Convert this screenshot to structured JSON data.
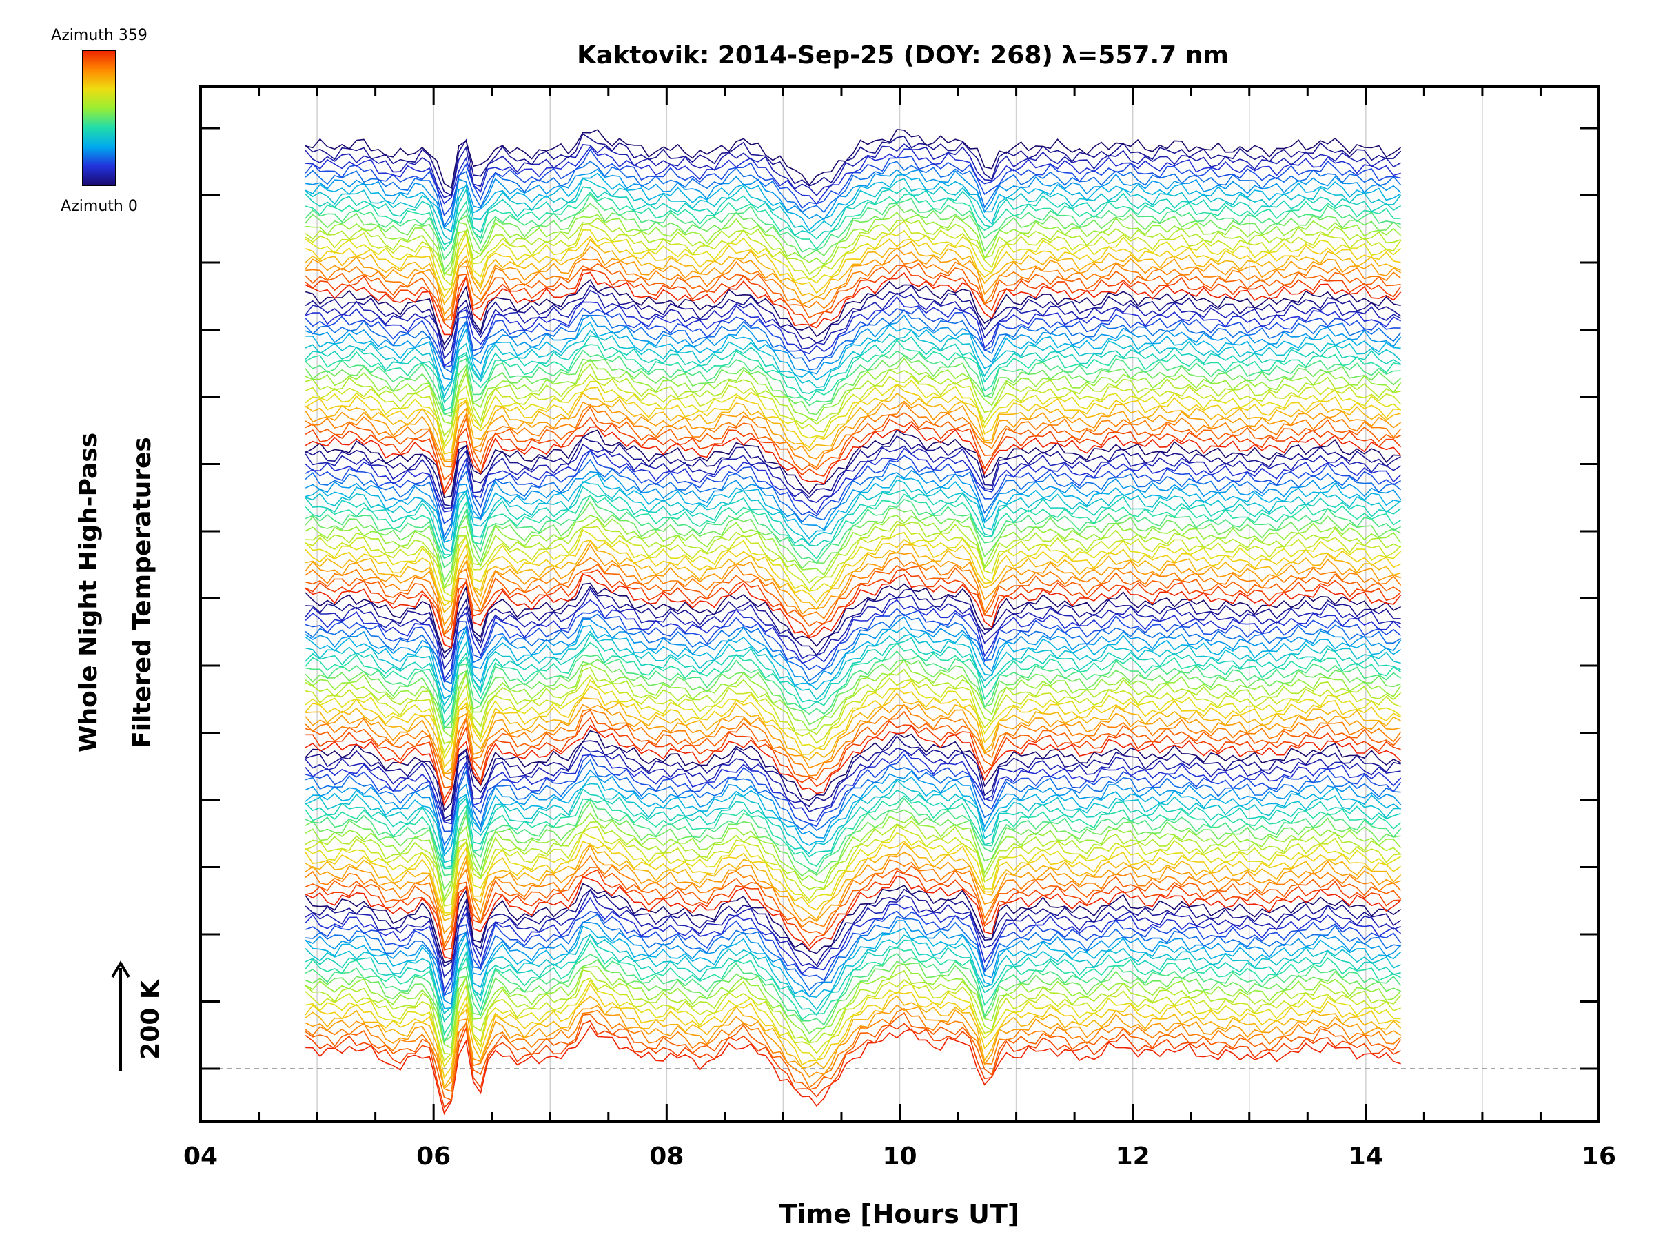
{
  "chart_data": {
    "type": "line",
    "title": "Kaktovik: 2014-Sep-25 (DOY: 268) λ=557.7 nm",
    "xlabel": "Time [Hours UT]",
    "ylabel_line1": "Whole Night High-Pass",
    "ylabel_line2": "Filtered Temperatures",
    "scale_bar_label": "200 K",
    "x_ticks": [
      "04",
      "06",
      "08",
      "10",
      "12",
      "14",
      "16"
    ],
    "x_tick_values": [
      4,
      6,
      8,
      10,
      12,
      14,
      16
    ],
    "xlim": [
      4,
      16
    ],
    "data_x_range": [
      4.9,
      14.3
    ],
    "vertical_gridlines": [
      5,
      6,
      7,
      8,
      9,
      10,
      11,
      12,
      13,
      14,
      15
    ],
    "ytick_count": 15,
    "offset_baseline_dashed": true,
    "grid": true,
    "colorbar": {
      "top_label": "Azimuth 359",
      "bottom_label": "Azimuth 0",
      "colormap": "rainbow",
      "colors": [
        "#1a0a6e",
        "#2233dd",
        "#00aaee",
        "#22ddaa",
        "#99ee33",
        "#eedd11",
        "#ff8800",
        "#ee2200"
      ]
    },
    "series_count": 144,
    "series_note": "High-pass filtered temperature traces, one per azimuth, vertically offset and colored by azimuth (0-359)."
  }
}
